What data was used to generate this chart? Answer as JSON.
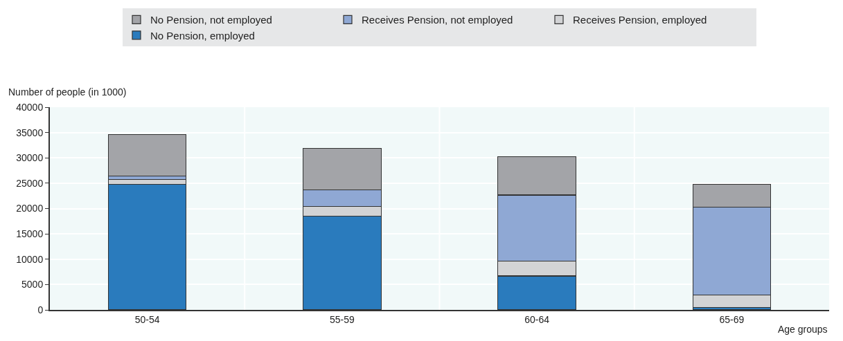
{
  "chart_data": {
    "type": "bar",
    "stacked": true,
    "xlabel": "Age groups",
    "ylabel": "Number of people (in 1000)",
    "categories": [
      "50-54",
      "55-59",
      "60-64",
      "65-69"
    ],
    "series": [
      {
        "name": "No Pension, employed",
        "color": "#2a7bbd",
        "values": [
          24750,
          18480,
          6690,
          450
        ]
      },
      {
        "name": "Receives Pension, employed",
        "color": "#d2d3d5",
        "values": [
          980,
          1880,
          2890,
          2480
        ]
      },
      {
        "name": "Receives Pension, not employed",
        "color": "#8fa8d4",
        "values": [
          640,
          3380,
          13070,
          17320
        ]
      },
      {
        "name": "No Pension, not employed",
        "color": "#a3a4a8",
        "values": [
          8230,
          8180,
          7580,
          4540
        ]
      }
    ],
    "ylim": [
      0,
      40000
    ],
    "yticks": [
      0,
      5000,
      10000,
      15000,
      20000,
      25000,
      30000,
      35000,
      40000
    ],
    "grid": true,
    "legend": "top"
  }
}
